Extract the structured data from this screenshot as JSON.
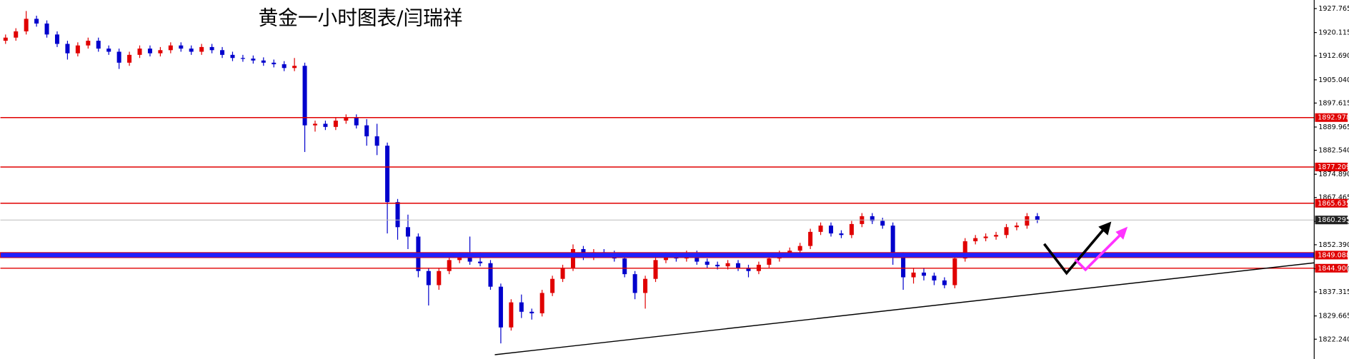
{
  "chart_data": {
    "type": "candlestick",
    "title": "黄金一小时图表/闫瑞祥",
    "up_color": "#e00000",
    "down_color": "#0000cc",
    "open": [
      1917.5,
      1918.5,
      1920.5,
      1924.5,
      1923.0,
      1919.5,
      1916.5,
      1913.5,
      1916.0,
      1917.5,
      1915.0,
      1914.0,
      1910.5,
      1913.0,
      1915.0,
      1913.5,
      1914.5,
      1916.0,
      1915.0,
      1914.0,
      1915.5,
      1914.5,
      1913.0,
      1912.0,
      1911.8,
      1911.2,
      1910.5,
      1910.0,
      1908.8,
      1909.5,
      1890.5,
      1891.0,
      1890.0,
      1892.0,
      1893.0,
      1890.5,
      1887.0,
      1884.0,
      1866.0,
      1858.0,
      1855.0,
      1844.0,
      1839.5,
      1844.0,
      1847.5,
      1849.0,
      1847.0,
      1846.5,
      1839.0,
      1826.0,
      1834.0,
      1831.0,
      1830.5,
      1837.0,
      1841.5,
      1845.0,
      1851.0,
      1848.5,
      1850.0,
      1849.5,
      1848.0,
      1843.0,
      1837.0,
      1841.5,
      1847.5,
      1849.0,
      1848.0,
      1849.5,
      1847.0,
      1846.0,
      1845.5,
      1846.5,
      1845.0,
      1844.0,
      1846.0,
      1848.0,
      1849.5,
      1850.5,
      1852.0,
      1856.5,
      1858.5,
      1856.0,
      1855.5,
      1859.0,
      1861.5,
      1860.0,
      1858.5,
      1849.0,
      1842.0,
      1843.5,
      1842.5,
      1841.0,
      1839.5,
      1848.0,
      1853.5,
      1854.5,
      1855.0,
      1855.5,
      1858.0,
      1858.5,
      1861.5
    ],
    "high": [
      1919.5,
      1921.5,
      1927.0,
      1925.5,
      1924.0,
      1920.5,
      1917.5,
      1917.0,
      1918.5,
      1918.5,
      1916.0,
      1915.0,
      1914.0,
      1916.0,
      1916.0,
      1915.5,
      1917.0,
      1917.0,
      1916.0,
      1916.5,
      1916.5,
      1915.5,
      1914.0,
      1913.0,
      1912.8,
      1912.2,
      1911.5,
      1911.0,
      1912.0,
      1910.5,
      1892.0,
      1892.0,
      1893.0,
      1894.0,
      1894.0,
      1892.5,
      1891.0,
      1885.0,
      1867.0,
      1862.0,
      1856.0,
      1845.0,
      1845.0,
      1848.5,
      1850.0,
      1855.0,
      1850.0,
      1847.5,
      1840.0,
      1835.0,
      1836.5,
      1832.0,
      1838.0,
      1842.5,
      1846.0,
      1852.5,
      1852.0,
      1851.0,
      1851.0,
      1850.5,
      1849.0,
      1844.0,
      1842.5,
      1848.5,
      1850.0,
      1850.0,
      1850.5,
      1850.5,
      1848.0,
      1847.0,
      1847.5,
      1847.5,
      1846.0,
      1847.0,
      1849.0,
      1850.5,
      1851.5,
      1853.0,
      1857.5,
      1859.5,
      1859.5,
      1857.0,
      1860.0,
      1862.5,
      1862.5,
      1861.0,
      1859.5,
      1850.0,
      1845.0,
      1845.0,
      1843.5,
      1842.0,
      1849.0,
      1854.5,
      1855.5,
      1856.0,
      1856.5,
      1859.0,
      1859.5,
      1862.5,
      1862.5
    ],
    "low": [
      1916.5,
      1917.5,
      1919.5,
      1922.0,
      1918.5,
      1915.5,
      1911.5,
      1912.5,
      1915.0,
      1914.0,
      1913.0,
      1908.5,
      1909.5,
      1912.0,
      1912.5,
      1912.5,
      1913.5,
      1914.0,
      1913.0,
      1913.0,
      1913.5,
      1912.0,
      1911.0,
      1910.8,
      1910.2,
      1909.5,
      1909.0,
      1907.8,
      1907.8,
      1882.0,
      1888.5,
      1889.0,
      1889.0,
      1891.0,
      1889.5,
      1884.0,
      1881.0,
      1856.0,
      1854.0,
      1851.0,
      1842.0,
      1833.0,
      1838.0,
      1843.0,
      1846.5,
      1846.0,
      1845.5,
      1838.0,
      1820.9,
      1825.0,
      1829.0,
      1828.5,
      1829.5,
      1836.0,
      1840.5,
      1844.0,
      1847.5,
      1847.5,
      1848.5,
      1847.0,
      1842.0,
      1835.0,
      1832.0,
      1840.5,
      1846.5,
      1847.0,
      1847.0,
      1846.0,
      1845.0,
      1844.5,
      1844.5,
      1844.0,
      1842.0,
      1843.0,
      1845.0,
      1847.0,
      1848.5,
      1849.5,
      1851.0,
      1855.5,
      1855.0,
      1854.5,
      1854.5,
      1858.0,
      1859.0,
      1857.5,
      1846.0,
      1838.0,
      1840.0,
      1841.0,
      1839.5,
      1838.5,
      1838.5,
      1847.0,
      1852.5,
      1853.5,
      1854.0,
      1854.5,
      1857.0,
      1857.5,
      1859.3
    ],
    "close": [
      1918.5,
      1920.5,
      1924.5,
      1923.0,
      1919.5,
      1916.5,
      1913.5,
      1916.0,
      1917.5,
      1915.0,
      1914.0,
      1910.5,
      1913.0,
      1915.0,
      1913.5,
      1914.5,
      1916.0,
      1915.0,
      1914.0,
      1915.5,
      1914.5,
      1913.0,
      1912.0,
      1911.8,
      1911.2,
      1910.5,
      1910.0,
      1908.8,
      1909.5,
      1890.5,
      1891.0,
      1890.0,
      1892.0,
      1893.0,
      1890.5,
      1887.0,
      1884.0,
      1866.0,
      1858.0,
      1855.0,
      1844.0,
      1839.5,
      1844.0,
      1847.5,
      1849.0,
      1847.0,
      1846.5,
      1839.0,
      1826.0,
      1834.0,
      1831.0,
      1830.5,
      1837.0,
      1841.5,
      1845.0,
      1851.0,
      1848.5,
      1850.0,
      1849.5,
      1848.0,
      1843.0,
      1837.0,
      1841.5,
      1847.5,
      1849.0,
      1848.0,
      1849.5,
      1847.0,
      1846.0,
      1845.5,
      1846.5,
      1845.0,
      1844.0,
      1846.0,
      1848.0,
      1849.5,
      1850.5,
      1852.0,
      1856.5,
      1858.5,
      1856.0,
      1855.5,
      1859.0,
      1861.5,
      1860.0,
      1858.5,
      1849.0,
      1842.0,
      1843.5,
      1842.5,
      1841.0,
      1839.5,
      1848.0,
      1853.5,
      1854.5,
      1855.0,
      1855.5,
      1858.0,
      1858.5,
      1861.5,
      1860.3
    ],
    "ylim": [
      1815.92,
      1930.51
    ],
    "yticks": [
      1927.765,
      1920.115,
      {
        "value": 1912.69,
        "label": "1912.690"
      },
      {
        "value": 1905.04,
        "label": "1905.040"
      },
      1897.615,
      1889.965,
      {
        "value": 1882.54,
        "label": "1882.540"
      },
      {
        "value": 1874.89,
        "label": "1874.890"
      },
      1867.465,
      1859.815,
      {
        "value": 1852.39,
        "label": "1852.390"
      },
      {
        "value": 1844.74,
        "label": "1844.740"
      },
      1837.315,
      1829.665,
      {
        "value": 1822.24,
        "label": "1822.240"
      }
    ],
    "levels": [
      {
        "value": 1892.978,
        "color": "#e00000"
      },
      {
        "value": 1877.209,
        "color": "#e00000"
      },
      {
        "value": 1865.635,
        "color": "#e00000"
      },
      {
        "value": 1849.088,
        "color": "#2020ff",
        "band": true
      },
      {
        "value": {
          "value": 1844.9,
          "label": "1844.900"
        },
        "color": "#e00000"
      }
    ],
    "last_price": 1860.295
  }
}
